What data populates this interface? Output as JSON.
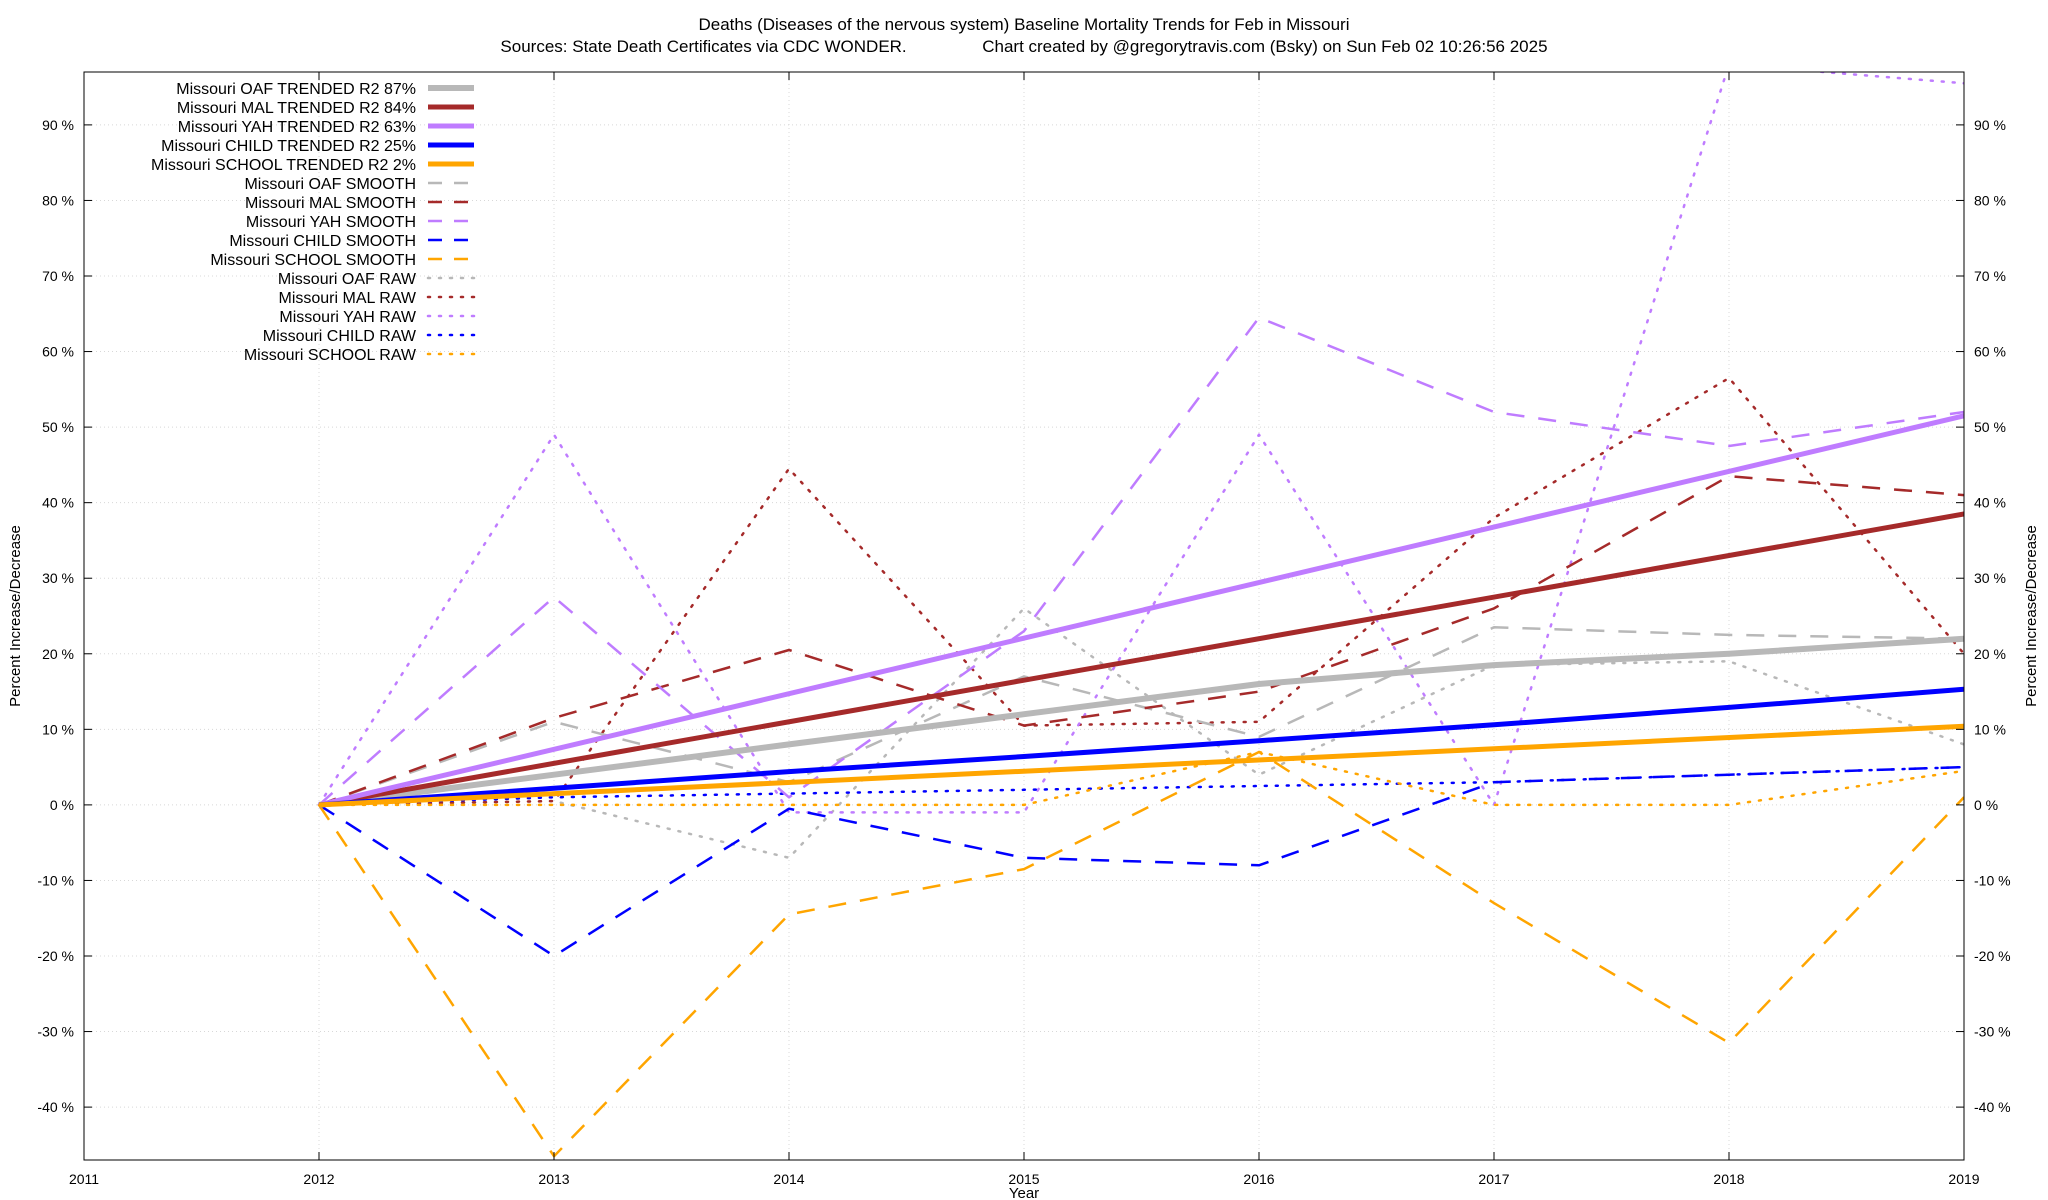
{
  "chart_data": {
    "type": "line",
    "title": "Deaths (Diseases of the nervous system)  Baseline Mortality Trends for Feb in Missouri",
    "subtitle": "Sources: State Death Certificates via CDC WONDER.                Chart created by @gregorytravis.com (Bsky) on Sun Feb 02 10:26:56 2025",
    "xlabel": "Year",
    "ylabel": "Percent Increase/Decrease",
    "y2label": "Percent Increase/Decrease",
    "xlim": [
      2011,
      2019
    ],
    "ylim": [
      -47,
      97
    ],
    "x_ticks": [
      2011,
      2012,
      2013,
      2014,
      2015,
      2016,
      2017,
      2018,
      2019
    ],
    "y_ticks": [
      -40,
      -30,
      -20,
      -10,
      0,
      10,
      20,
      30,
      40,
      50,
      60,
      70,
      80,
      90
    ],
    "y_tick_suffix": " %",
    "grid": true,
    "legend_position": "top-left",
    "series": [
      {
        "name": "Missouri OAF TRENDED R2  87%",
        "style": "solid",
        "width": 6,
        "color": "#b8b8b8",
        "x": [
          2012,
          2013,
          2014,
          2015,
          2016,
          2017,
          2018,
          2019
        ],
        "y": [
          0,
          4,
          8,
          12,
          16,
          18.5,
          20,
          22
        ]
      },
      {
        "name": "Missouri MAL TRENDED R2  84%",
        "style": "solid",
        "width": 5,
        "color": "#a52a2a",
        "x": [
          2012,
          2019
        ],
        "y": [
          0,
          38.5
        ]
      },
      {
        "name": "Missouri YAH TRENDED R2  63%",
        "style": "solid",
        "width": 5,
        "color": "#bf7cff",
        "x": [
          2012,
          2019
        ],
        "y": [
          0,
          51.5
        ]
      },
      {
        "name": "Missouri CHILD TRENDED R2  25%",
        "style": "solid",
        "width": 5,
        "color": "#0000ff",
        "x": [
          2012,
          2013,
          2014,
          2015,
          2016,
          2017,
          2018,
          2019
        ],
        "y": [
          0,
          2.2,
          4.4,
          6.4,
          8.5,
          10.6,
          12.9,
          15.3
        ]
      },
      {
        "name": "Missouri SCHOOL TRENDED R2   2%",
        "style": "solid",
        "width": 5,
        "color": "#ffa500",
        "x": [
          2012,
          2019
        ],
        "y": [
          0,
          10.4
        ]
      },
      {
        "name": "Missouri OAF SMOOTH",
        "style": "dashed",
        "width": 2.5,
        "color": "#b8b8b8",
        "x": [
          2012,
          2013,
          2014,
          2015,
          2016,
          2017,
          2018,
          2019
        ],
        "y": [
          0,
          11,
          3,
          17,
          9,
          23.5,
          22.5,
          22
        ]
      },
      {
        "name": "Missouri MAL SMOOTH",
        "style": "dashed",
        "width": 2.5,
        "color": "#a52a2a",
        "x": [
          2012,
          2013,
          2014,
          2015,
          2016,
          2017,
          2018,
          2019
        ],
        "y": [
          0,
          11.5,
          20.5,
          10.5,
          15,
          26,
          43.5,
          41
        ]
      },
      {
        "name": "Missouri YAH SMOOTH",
        "style": "dashed",
        "width": 2.5,
        "color": "#bf7cff",
        "x": [
          2012,
          2013,
          2014,
          2015,
          2016,
          2017,
          2018,
          2019
        ],
        "y": [
          0,
          27.5,
          1,
          23,
          64.5,
          52,
          47.5,
          52
        ]
      },
      {
        "name": "Missouri CHILD SMOOTH",
        "style": "dashed",
        "width": 2.5,
        "color": "#0000ff",
        "x": [
          2012,
          2013,
          2014,
          2015,
          2016,
          2017,
          2018,
          2019
        ],
        "y": [
          0,
          -20,
          -0.5,
          -7,
          -8,
          3,
          4,
          5
        ]
      },
      {
        "name": "Missouri SCHOOL SMOOTH",
        "style": "dashed",
        "width": 2.5,
        "color": "#ffa500",
        "x": [
          2012,
          2013,
          2014,
          2015,
          2016,
          2017,
          2018,
          2019
        ],
        "y": [
          0,
          -46.5,
          -14.5,
          -8.5,
          7,
          -13,
          -31.5,
          1
        ]
      },
      {
        "name": "Missouri OAF RAW",
        "style": "dotted",
        "width": 2.5,
        "color": "#b8b8b8",
        "x": [
          2012,
          2013,
          2014,
          2015,
          2016,
          2017,
          2018,
          2019
        ],
        "y": [
          0,
          0.5,
          -7,
          26,
          4,
          18.5,
          19,
          8
        ]
      },
      {
        "name": "Missouri MAL RAW",
        "style": "dotted",
        "width": 2.5,
        "color": "#a52a2a",
        "x": [
          2012,
          2013,
          2014,
          2015,
          2016,
          2017,
          2018,
          2019
        ],
        "y": [
          0,
          0.5,
          44.5,
          10.5,
          11,
          38,
          56.5,
          20
        ]
      },
      {
        "name": "Missouri YAH RAW",
        "style": "dotted",
        "width": 2.5,
        "color": "#bf7cff",
        "x": [
          2012,
          2013,
          2014,
          2015,
          2016,
          2017,
          2018,
          2019
        ],
        "y": [
          0,
          49,
          -1,
          -1,
          49,
          0,
          98,
          95.5
        ]
      },
      {
        "name": "Missouri CHILD RAW",
        "style": "dotted",
        "width": 2.5,
        "color": "#0000ff",
        "x": [
          2012,
          2013,
          2014,
          2015,
          2016,
          2017,
          2018,
          2019
        ],
        "y": [
          0,
          1,
          1.5,
          2,
          2.5,
          3,
          4,
          5
        ]
      },
      {
        "name": "Missouri SCHOOL RAW",
        "style": "dotted",
        "width": 2.5,
        "color": "#ffa500",
        "x": [
          2012,
          2013,
          2014,
          2015,
          2016,
          2017,
          2018,
          2019
        ],
        "y": [
          0,
          0,
          0,
          0,
          7,
          0,
          0,
          4.5
        ]
      }
    ]
  }
}
